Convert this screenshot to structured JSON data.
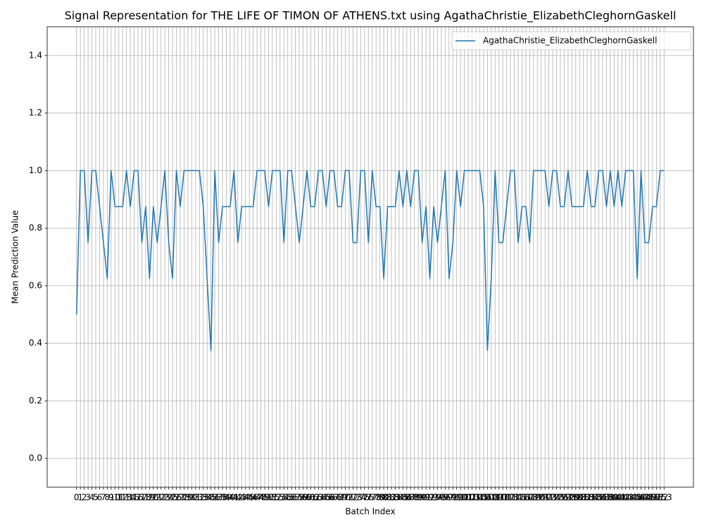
{
  "chart_data": {
    "type": "line",
    "title": "Signal Representation for THE LIFE OF TIMON OF ATHENS.txt using AgathaChristie_ElizabethCleghornGaskell",
    "xlabel": "Batch Index",
    "ylabel": "Mean Prediction Value",
    "x": [
      0,
      1,
      2,
      3,
      4,
      5,
      6,
      7,
      8,
      9,
      10,
      11,
      12,
      13,
      14,
      15,
      16,
      17,
      18,
      19,
      20,
      21,
      22,
      23,
      24,
      25,
      26,
      27,
      28,
      29,
      30,
      31,
      32,
      33,
      34,
      35,
      36,
      37,
      38,
      39,
      40,
      41,
      42,
      43,
      44,
      45,
      46,
      47,
      48,
      49,
      50,
      51,
      52,
      53,
      54,
      55,
      56,
      57,
      58,
      59,
      60,
      61,
      62,
      63,
      64,
      65,
      66,
      67,
      68,
      69,
      70,
      71,
      72,
      73,
      74,
      75,
      76,
      77,
      78,
      79,
      80,
      81,
      82,
      83,
      84,
      85,
      86,
      87,
      88,
      89,
      90,
      91,
      92,
      93,
      94,
      95,
      96,
      97,
      98,
      99,
      100,
      101,
      102,
      103,
      104,
      105,
      106,
      107,
      108,
      109,
      110,
      111,
      112,
      113,
      114,
      115,
      116,
      117,
      118,
      119,
      120,
      121,
      122,
      123,
      124,
      125,
      126,
      127,
      128,
      129,
      130,
      131,
      132,
      133,
      134,
      135,
      136,
      137,
      138,
      139,
      140,
      141,
      142,
      143,
      144,
      145,
      146,
      147,
      148,
      149,
      150,
      151,
      152,
      153
    ],
    "series": [
      {
        "name": "AgathaChristie_ElizabethCleghornGaskell",
        "color": "#1f77b4",
        "values": [
          0.5,
          1,
          1,
          0.75,
          1,
          1,
          0.875,
          0.75,
          0.625,
          1,
          0.875,
          0.875,
          0.875,
          1,
          0.875,
          1,
          1,
          0.75,
          0.875,
          0.625,
          0.875,
          0.75,
          0.875,
          1,
          0.75,
          0.625,
          1,
          0.875,
          1,
          1,
          1,
          1,
          1,
          0.875,
          0.625,
          0.375,
          1,
          0.75,
          0.875,
          0.875,
          0.875,
          1,
          0.75,
          0.875,
          0.875,
          0.875,
          0.875,
          1,
          1,
          1,
          0.875,
          1,
          1,
          1,
          0.75,
          1,
          1,
          0.875,
          0.75,
          0.875,
          1,
          0.875,
          0.875,
          1,
          1,
          0.875,
          1,
          1,
          0.875,
          0.875,
          1,
          1,
          0.75,
          0.75,
          1,
          1,
          0.75,
          1,
          0.875,
          0.875,
          0.625,
          0.875,
          0.875,
          0.875,
          1,
          0.875,
          1,
          0.875,
          1,
          1,
          0.75,
          0.875,
          0.625,
          0.875,
          0.75,
          0.875,
          1,
          0.625,
          0.75,
          1,
          0.875,
          1,
          1,
          1,
          1,
          1,
          0.875,
          0.375,
          0.625,
          1,
          0.75,
          0.75,
          0.875,
          1,
          1,
          0.75,
          0.875,
          0.875,
          0.75,
          1,
          1,
          1,
          1,
          0.875,
          1,
          1,
          0.875,
          0.875,
          1,
          0.875,
          0.875,
          0.875,
          0.875,
          1,
          0.875,
          0.875,
          1,
          1,
          0.875,
          1,
          0.875,
          1,
          0.875,
          1,
          1,
          1,
          0.625,
          1,
          0.75,
          0.75,
          0.875,
          0.875,
          1,
          1
        ]
      }
    ],
    "xlim": [
      -7.65,
      160.65
    ],
    "xticks": [
      0,
      1,
      2,
      3,
      4,
      5,
      6,
      7,
      8,
      9,
      10,
      11,
      12,
      13,
      14,
      15,
      16,
      17,
      18,
      19,
      20,
      21,
      22,
      23,
      24,
      25,
      26,
      27,
      28,
      29,
      30,
      31,
      32,
      33,
      34,
      35,
      36,
      37,
      38,
      39,
      40,
      41,
      42,
      43,
      44,
      45,
      46,
      47,
      48,
      49,
      50,
      51,
      52,
      53,
      54,
      55,
      56,
      57,
      58,
      59,
      60,
      61,
      62,
      63,
      64,
      65,
      66,
      67,
      68,
      69,
      70,
      71,
      72,
      73,
      74,
      75,
      76,
      77,
      78,
      79,
      80,
      81,
      82,
      83,
      84,
      85,
      86,
      87,
      88,
      89,
      90,
      91,
      92,
      93,
      94,
      95,
      96,
      97,
      98,
      99,
      100,
      101,
      102,
      103,
      104,
      105,
      106,
      107,
      108,
      109,
      110,
      111,
      112,
      113,
      114,
      115,
      116,
      117,
      118,
      119,
      120,
      121,
      122,
      123,
      124,
      125,
      126,
      127,
      128,
      129,
      130,
      131,
      132,
      133,
      134,
      135,
      136,
      137,
      138,
      139,
      140,
      141,
      142,
      143,
      144,
      145,
      146,
      147,
      148,
      149,
      150,
      151,
      152,
      153
    ],
    "ylim": [
      -0.1,
      1.5
    ],
    "yticks": [
      {
        "value": 0,
        "label": "0.0"
      },
      0.2,
      0.4,
      0.6,
      0.8,
      {
        "value": 1,
        "label": "1.0"
      },
      1.2,
      1.4
    ],
    "grid": true,
    "legend": "upper right"
  }
}
